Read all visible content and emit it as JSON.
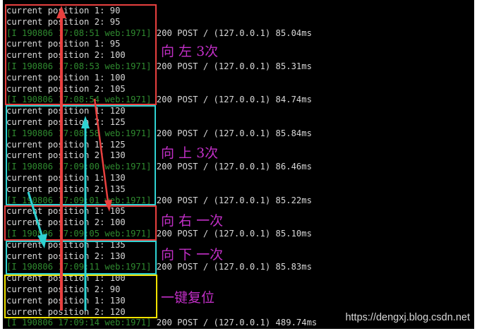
{
  "terminal": {
    "lines": [
      {
        "type": "pos",
        "text": "current position 1: 90"
      },
      {
        "type": "pos",
        "text": "current position 2: 95"
      },
      {
        "type": "log",
        "text": "[I 190806 17:08:51 web:1971]",
        "resp": " 200 POST / (127.0.0.1) 85.04ms"
      },
      {
        "type": "pos",
        "text": "current position 1: 95"
      },
      {
        "type": "pos",
        "text": "current position 2: 100"
      },
      {
        "type": "log",
        "text": "[I 190806 17:08:53 web:1971]",
        "resp": " 200 POST / (127.0.0.1) 85.31ms"
      },
      {
        "type": "pos",
        "text": "current position 1: 100"
      },
      {
        "type": "pos",
        "text": "current position 2: 105"
      },
      {
        "type": "log",
        "text": "[I 190806 17:08:54 web:1971]",
        "resp": " 200 POST / (127.0.0.1) 84.74ms"
      },
      {
        "type": "pos",
        "text": "current position 1: 120"
      },
      {
        "type": "pos",
        "text": "current position 2: 125"
      },
      {
        "type": "log",
        "text": "[I 190806 17:08:58 web:1971]",
        "resp": " 200 POST / (127.0.0.1) 85.84ms"
      },
      {
        "type": "pos",
        "text": "current position 1: 125"
      },
      {
        "type": "pos",
        "text": "current position 2: 130"
      },
      {
        "type": "log",
        "text": "[I 190806 17:09:00 web:1971]",
        "resp": " 200 POST / (127.0.0.1) 86.46ms"
      },
      {
        "type": "pos",
        "text": "current position 1: 130"
      },
      {
        "type": "pos",
        "text": "current position 2: 135"
      },
      {
        "type": "log",
        "text": "[I 190806 17:09:01 web:1971]",
        "resp": " 200 POST / (127.0.0.1) 85.22ms"
      },
      {
        "type": "pos",
        "text": "current position 1: 105"
      },
      {
        "type": "pos",
        "text": "current position 2: 100"
      },
      {
        "type": "log",
        "text": "[I 190806 17:09:05 web:1971]",
        "resp": " 200 POST / (127.0.0.1) 85.10ms"
      },
      {
        "type": "pos",
        "text": "current position 1: 135"
      },
      {
        "type": "pos",
        "text": "current position 2: 130"
      },
      {
        "type": "log",
        "text": "[I 190806 17:09:11 web:1971]",
        "resp": " 200 POST / (127.0.0.1) 85.83ms"
      },
      {
        "type": "pos",
        "text": "current position 1: 100"
      },
      {
        "type": "pos",
        "text": "current position 2: 90"
      },
      {
        "type": "pos",
        "text": "current position 1: 130"
      },
      {
        "type": "pos",
        "text": "current position 2: 120"
      },
      {
        "type": "log",
        "text": "[I 190806 17:09:14 web:1971]",
        "resp": " 200 POST / (127.0.0.1) 489.74ms"
      }
    ]
  },
  "annotations": {
    "left_3": "向 左 3次",
    "up_3": "向 上 3次",
    "right_1": "向 右 一次",
    "down_1": "向 下 一次",
    "reset": "一键复位"
  },
  "watermark": "https://dengxj.blog.csdn.net",
  "colors": {
    "red": "#e8403f",
    "cyan": "#2fd3d3",
    "yellow": "#f2e200",
    "annotation": "#c32fc8",
    "log_green": "#2f8a2f"
  }
}
